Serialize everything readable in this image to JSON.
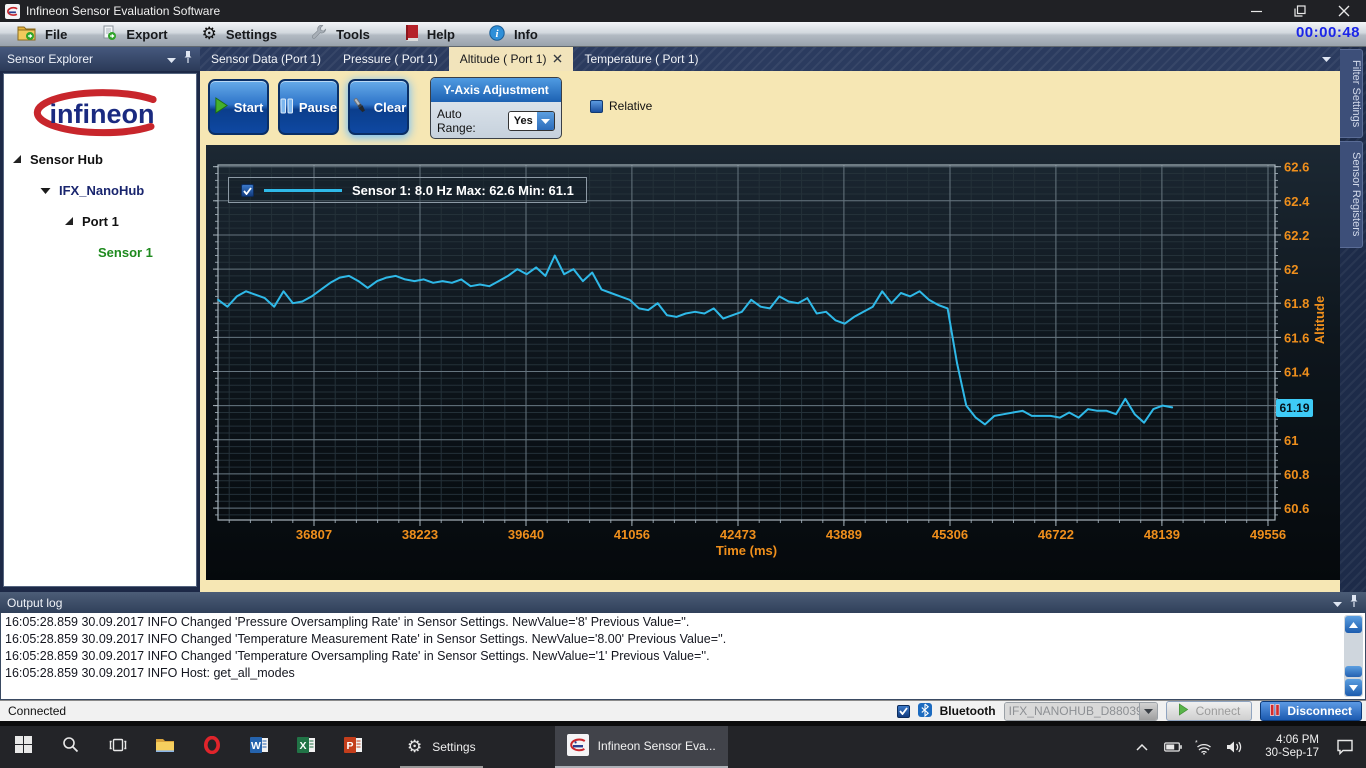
{
  "window": {
    "title": "Infineon Sensor Evaluation Software",
    "timer": "00:00:48"
  },
  "menu": {
    "items": [
      {
        "id": "file",
        "label": "File",
        "icon": "folder-icon"
      },
      {
        "id": "export",
        "label": "Export",
        "icon": "export-icon"
      },
      {
        "id": "settings",
        "label": "Settings",
        "icon": "gear-icon"
      },
      {
        "id": "tools",
        "label": "Tools",
        "icon": "wrench-icon"
      },
      {
        "id": "help",
        "label": "Help",
        "icon": "book-icon"
      },
      {
        "id": "info",
        "label": "Info",
        "icon": "info-icon"
      }
    ]
  },
  "sidebar": {
    "title": "Sensor Explorer",
    "logo_text": "infineon",
    "tree": [
      {
        "id": "sensor-hub",
        "label": "Sensor Hub",
        "level": 0,
        "expander": "expanded",
        "color": "#111111"
      },
      {
        "id": "ifx-nanohub",
        "label": "IFX_NanoHub",
        "level": 1,
        "expander": "down",
        "color": "#19256e"
      },
      {
        "id": "port-1",
        "label": "Port 1",
        "level": 2,
        "expander": "expanded",
        "color": "#111111"
      },
      {
        "id": "sensor-1",
        "label": "Sensor 1",
        "level": 3,
        "expander": "none",
        "color": "#1e8a1e"
      }
    ]
  },
  "tabs": [
    {
      "id": "sensor-data",
      "label": "Sensor Data (Port 1)",
      "active": false,
      "closable": false
    },
    {
      "id": "pressure",
      "label": "Pressure ( Port 1)",
      "active": false,
      "closable": false
    },
    {
      "id": "altitude",
      "label": "Altitude ( Port 1)",
      "active": true,
      "closable": true
    },
    {
      "id": "temperature",
      "label": "Temperature ( Port 1)",
      "active": false,
      "closable": false
    }
  ],
  "side_tabs": [
    "Filter Settings",
    "Sensor Registers"
  ],
  "toolbar": {
    "start_label": "Start",
    "pause_label": "Pause",
    "clear_label": "Clear",
    "yaxis_title": "Y-Axis Adjustment",
    "auto_range_label": "Auto Range:",
    "auto_range_value": "Yes",
    "relative_label": "Relative"
  },
  "chart_data": {
    "type": "line",
    "title": "",
    "xlabel": "Time (ms)",
    "ylabel": "Altitude",
    "grid": true,
    "legend_position": "top-left",
    "x_ticks": [
      36807,
      38223,
      39640,
      41056,
      42473,
      43889,
      45306,
      46722,
      48139,
      49556
    ],
    "y_ticks": [
      60.6,
      60.8,
      61,
      61.2,
      61.4,
      61.6,
      61.8,
      62,
      62.2,
      62.4,
      62.6
    ],
    "hidden_y_tick_label": 61.2,
    "x_minor_step": 283.3,
    "y_minor_step": 0.04,
    "x_range": [
      35524,
      49650
    ],
    "y_range": [
      60.53,
      62.61
    ],
    "current_value": "61.19",
    "axis_color": "#ef8f1c",
    "series": [
      {
        "name": "Sensor 1: 8.0 Hz Max: 62.6 Min: 61.1",
        "color": "#2fb9e8",
        "sample_rate_hz": 8.0,
        "max": 62.6,
        "min": 61.1,
        "points": [
          [
            35525,
            61.82
          ],
          [
            35650,
            61.78
          ],
          [
            35775,
            61.84
          ],
          [
            35900,
            61.87
          ],
          [
            36025,
            61.85
          ],
          [
            36150,
            61.83
          ],
          [
            36275,
            61.78
          ],
          [
            36400,
            61.87
          ],
          [
            36525,
            61.8
          ],
          [
            36650,
            61.81
          ],
          [
            36775,
            61.84
          ],
          [
            36900,
            61.88
          ],
          [
            37025,
            61.92
          ],
          [
            37150,
            61.95
          ],
          [
            37275,
            61.96
          ],
          [
            37400,
            61.93
          ],
          [
            37525,
            61.89
          ],
          [
            37650,
            61.93
          ],
          [
            37775,
            61.95
          ],
          [
            37900,
            61.96
          ],
          [
            38025,
            61.94
          ],
          [
            38150,
            61.93
          ],
          [
            38275,
            61.94
          ],
          [
            38400,
            61.92
          ],
          [
            38525,
            61.93
          ],
          [
            38650,
            61.92
          ],
          [
            38775,
            61.94
          ],
          [
            38900,
            61.9
          ],
          [
            39025,
            61.91
          ],
          [
            39150,
            61.9
          ],
          [
            39275,
            61.93
          ],
          [
            39400,
            61.96
          ],
          [
            39525,
            62.0
          ],
          [
            39650,
            61.97
          ],
          [
            39775,
            62.01
          ],
          [
            39900,
            61.96
          ],
          [
            40025,
            62.08
          ],
          [
            40150,
            61.97
          ],
          [
            40275,
            62.0
          ],
          [
            40400,
            61.93
          ],
          [
            40525,
            61.98
          ],
          [
            40650,
            61.88
          ],
          [
            40775,
            61.86
          ],
          [
            40900,
            61.84
          ],
          [
            41025,
            61.82
          ],
          [
            41150,
            61.77
          ],
          [
            41275,
            61.76
          ],
          [
            41400,
            61.8
          ],
          [
            41525,
            61.73
          ],
          [
            41650,
            61.72
          ],
          [
            41775,
            61.74
          ],
          [
            41900,
            61.75
          ],
          [
            42025,
            61.74
          ],
          [
            42150,
            61.77
          ],
          [
            42275,
            61.71
          ],
          [
            42400,
            61.73
          ],
          [
            42525,
            61.75
          ],
          [
            42650,
            61.82
          ],
          [
            42775,
            61.78
          ],
          [
            42900,
            61.77
          ],
          [
            43025,
            61.84
          ],
          [
            43150,
            61.81
          ],
          [
            43275,
            61.8
          ],
          [
            43400,
            61.83
          ],
          [
            43525,
            61.74
          ],
          [
            43650,
            61.75
          ],
          [
            43775,
            61.7
          ],
          [
            43900,
            61.68
          ],
          [
            44025,
            61.72
          ],
          [
            44150,
            61.75
          ],
          [
            44275,
            61.78
          ],
          [
            44400,
            61.87
          ],
          [
            44525,
            61.8
          ],
          [
            44650,
            61.86
          ],
          [
            44775,
            61.84
          ],
          [
            44900,
            61.87
          ],
          [
            45025,
            61.82
          ],
          [
            45150,
            61.79
          ],
          [
            45275,
            61.77
          ],
          [
            45400,
            61.45
          ],
          [
            45525,
            61.2
          ],
          [
            45650,
            61.13
          ],
          [
            45775,
            61.09
          ],
          [
            45900,
            61.14
          ],
          [
            46025,
            61.15
          ],
          [
            46150,
            61.16
          ],
          [
            46275,
            61.17
          ],
          [
            46400,
            61.14
          ],
          [
            46525,
            61.14
          ],
          [
            46650,
            61.14
          ],
          [
            46775,
            61.13
          ],
          [
            46900,
            61.16
          ],
          [
            47025,
            61.13
          ],
          [
            47150,
            61.18
          ],
          [
            47275,
            61.17
          ],
          [
            47400,
            61.17
          ],
          [
            47525,
            61.15
          ],
          [
            47650,
            61.24
          ],
          [
            47775,
            61.15
          ],
          [
            47900,
            61.1
          ],
          [
            48025,
            61.18
          ],
          [
            48150,
            61.2
          ],
          [
            48275,
            61.19
          ]
        ]
      }
    ]
  },
  "output_log": {
    "title": "Output log",
    "lines": [
      "16:05:28.859 30.09.2017 INFO Changed 'Pressure Oversampling Rate' in Sensor Settings. NewValue='8' Previous Value=''.",
      "16:05:28.859 30.09.2017 INFO Changed 'Temperature Measurement Rate' in Sensor Settings. NewValue='8.00' Previous Value=''.",
      "16:05:28.859 30.09.2017 INFO Changed 'Temperature Oversampling Rate' in Sensor Settings. NewValue='1' Previous Value=''.",
      "16:05:28.859 30.09.2017 INFO Host: get_all_modes"
    ]
  },
  "status_bar": {
    "status": "Connected",
    "bluetooth_label": "Bluetooth",
    "device": "IFX_NANOHUB_D88039",
    "connect_label": "Connect",
    "disconnect_label": "Disconnect"
  },
  "taskbar": {
    "items": [
      {
        "id": "start",
        "icon": "start-icon"
      },
      {
        "id": "search",
        "icon": "search-icon"
      },
      {
        "id": "task-view",
        "icon": "taskview-icon"
      },
      {
        "id": "file-explorer",
        "icon": "folder-task-icon"
      },
      {
        "id": "opera",
        "icon": "opera-icon"
      },
      {
        "id": "word",
        "icon": "word-icon"
      },
      {
        "id": "excel",
        "icon": "excel-icon"
      },
      {
        "id": "powerpoint",
        "icon": "powerpoint-icon"
      }
    ],
    "settings_label": "Settings",
    "active_app_label": "Infineon Sensor Eva...",
    "clock_time": "4:06 PM",
    "clock_date": "30-Sep-17"
  },
  "colors": {
    "accent_blue": "#2e74c9",
    "toolbar_cream": "#f6e7b4",
    "series_line": "#2fb9e8",
    "axis_orange": "#ef8f1c",
    "badge_cyan": "#3ecbf7",
    "sensor_green": "#1e8a1e"
  }
}
